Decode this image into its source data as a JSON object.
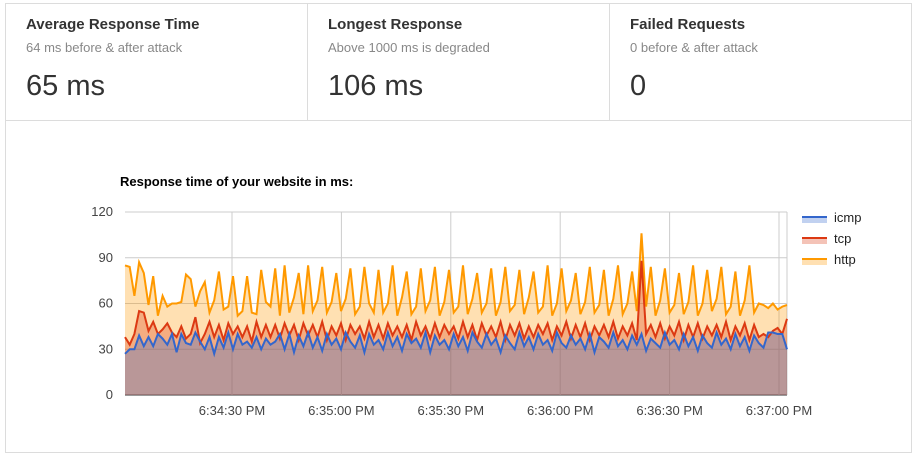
{
  "stats": [
    {
      "title": "Average Response Time",
      "subtitle": "64 ms before & after attack",
      "value": "65 ms"
    },
    {
      "title": "Longest Response",
      "subtitle": "Above 1000 ms is degraded",
      "value": "106 ms"
    },
    {
      "title": "Failed Requests",
      "subtitle": "0 before & after attack",
      "value": "0"
    }
  ],
  "chart_data": {
    "type": "area",
    "title": "Response time of your website in ms:",
    "xlabel": "",
    "ylabel": "",
    "ylim": [
      0,
      120
    ],
    "yticks": [
      0,
      30,
      60,
      90,
      120
    ],
    "xticks": [
      "6:34:30 PM",
      "6:35:00 PM",
      "6:35:30 PM",
      "6:36:00 PM",
      "6:36:30 PM",
      "6:37:00 PM"
    ],
    "grid": true,
    "legend_position": "right",
    "series": [
      {
        "name": "icmp",
        "color": "#3366cc",
        "fill": "#3366cc",
        "values": [
          27,
          30,
          30,
          39,
          32,
          38,
          32,
          40,
          37,
          33,
          40,
          28,
          40,
          34,
          33,
          41,
          35,
          30,
          38,
          27,
          38,
          31,
          41,
          30,
          40,
          33,
          35,
          31,
          38,
          30,
          37,
          33,
          35,
          40,
          30,
          40,
          28,
          39,
          32,
          41,
          31,
          38,
          29,
          40,
          33,
          37,
          30,
          41,
          35,
          31,
          39,
          28,
          40,
          33,
          36,
          30,
          41,
          32,
          38,
          29,
          40,
          34,
          37,
          31,
          41,
          28,
          39,
          33,
          36,
          30,
          40,
          32,
          38,
          29,
          41,
          35,
          31,
          40,
          33,
          37,
          28,
          39,
          34,
          30,
          41,
          32,
          38,
          30,
          40,
          33,
          36,
          29,
          41,
          34,
          31,
          39,
          33,
          37,
          30,
          40,
          28,
          38,
          35,
          31,
          41,
          32,
          36,
          30,
          39,
          33,
          40,
          29,
          37,
          34,
          31,
          41,
          33,
          36,
          30,
          40,
          32,
          38,
          29,
          39,
          34,
          31,
          41,
          33,
          37,
          30,
          40,
          32,
          38,
          29,
          39,
          34,
          31,
          41,
          41,
          40,
          40,
          30
        ]
      },
      {
        "name": "tcp",
        "color": "#dc3912",
        "fill": "#dc3912",
        "values": [
          38,
          33,
          40,
          55,
          54,
          42,
          48,
          40,
          43,
          47,
          41,
          38,
          45,
          37,
          40,
          51,
          34,
          40,
          48,
          38,
          46,
          36,
          47,
          40,
          45,
          38,
          45,
          35,
          48,
          38,
          46,
          38,
          46,
          37,
          47,
          39,
          46,
          36,
          47,
          39,
          46,
          38,
          48,
          36,
          45,
          39,
          47,
          36,
          46,
          40,
          45,
          37,
          48,
          38,
          46,
          37,
          47,
          39,
          45,
          38,
          46,
          36,
          48,
          39,
          45,
          37,
          47,
          38,
          46,
          40,
          45,
          37,
          48,
          38,
          46,
          36,
          47,
          39,
          45,
          38,
          48,
          36,
          46,
          39,
          47,
          37,
          45,
          38,
          46,
          40,
          47,
          36,
          45,
          39,
          48,
          37,
          46,
          38,
          47,
          36,
          45,
          39,
          46,
          38,
          48,
          37,
          45,
          39,
          47,
          36,
          88,
          40,
          46,
          38,
          47,
          37,
          45,
          39,
          48,
          36,
          46,
          38,
          47,
          37,
          45,
          39,
          46,
          38,
          48,
          36,
          45,
          39,
          47,
          36,
          46,
          38,
          40,
          38,
          42,
          44,
          40,
          50
        ]
      },
      {
        "name": "http",
        "color": "#ff9900",
        "fill": "#ff9900",
        "values": [
          85,
          84,
          65,
          87,
          80,
          59,
          78,
          52,
          65,
          58,
          60,
          60,
          61,
          79,
          76,
          58,
          68,
          74,
          54,
          62,
          81,
          56,
          58,
          78,
          52,
          55,
          78,
          54,
          53,
          82,
          61,
          58,
          83,
          52,
          85,
          54,
          64,
          80,
          53,
          85,
          55,
          62,
          84,
          54,
          61,
          80,
          55,
          63,
          83,
          53,
          58,
          84,
          60,
          54,
          82,
          54,
          60,
          85,
          52,
          64,
          81,
          53,
          58,
          83,
          55,
          62,
          84,
          52,
          61,
          82,
          54,
          58,
          85,
          53,
          63,
          80,
          54,
          60,
          83,
          52,
          61,
          84,
          55,
          59,
          82,
          53,
          64,
          81,
          54,
          58,
          85,
          52,
          60,
          83,
          55,
          62,
          80,
          53,
          61,
          84,
          54,
          59,
          82,
          52,
          63,
          85,
          53,
          60,
          81,
          55,
          106,
          58,
          84,
          52,
          62,
          83,
          54,
          59,
          80,
          53,
          61,
          85,
          52,
          60,
          82,
          55,
          63,
          84,
          53,
          58,
          81,
          52,
          62,
          85,
          54,
          60,
          59,
          57,
          60,
          56,
          58,
          59
        ]
      }
    ]
  },
  "colors": {
    "grid": "#cccccc",
    "axis_text": "#444444"
  }
}
